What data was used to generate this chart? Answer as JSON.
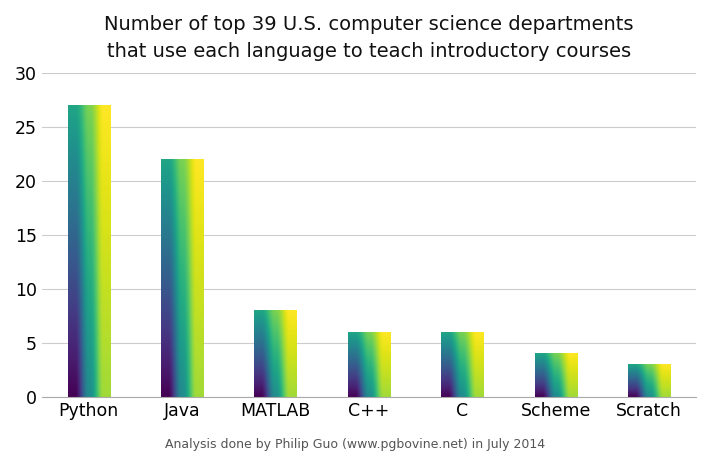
{
  "categories": [
    "Python",
    "Java",
    "MATLAB",
    "C++",
    "C",
    "Scheme",
    "Scratch"
  ],
  "values": [
    27,
    22,
    8,
    6,
    6,
    4,
    3
  ],
  "bar_color_top": "#aecce8",
  "bar_color_bottom": "#5b9fd4",
  "title_line1": "Number of top 39 U.S. computer science departments",
  "title_line2": "that use each language to teach introductory courses",
  "footnote": "Analysis done by Philip Guo (www.pgbovine.net) in July 2014",
  "ylim": [
    0,
    30
  ],
  "yticks": [
    0,
    5,
    10,
    15,
    20,
    25,
    30
  ],
  "background_color": "#ffffff",
  "title_fontsize": 14,
  "tick_fontsize": 12.5,
  "footnote_fontsize": 9,
  "bar_width": 0.45
}
